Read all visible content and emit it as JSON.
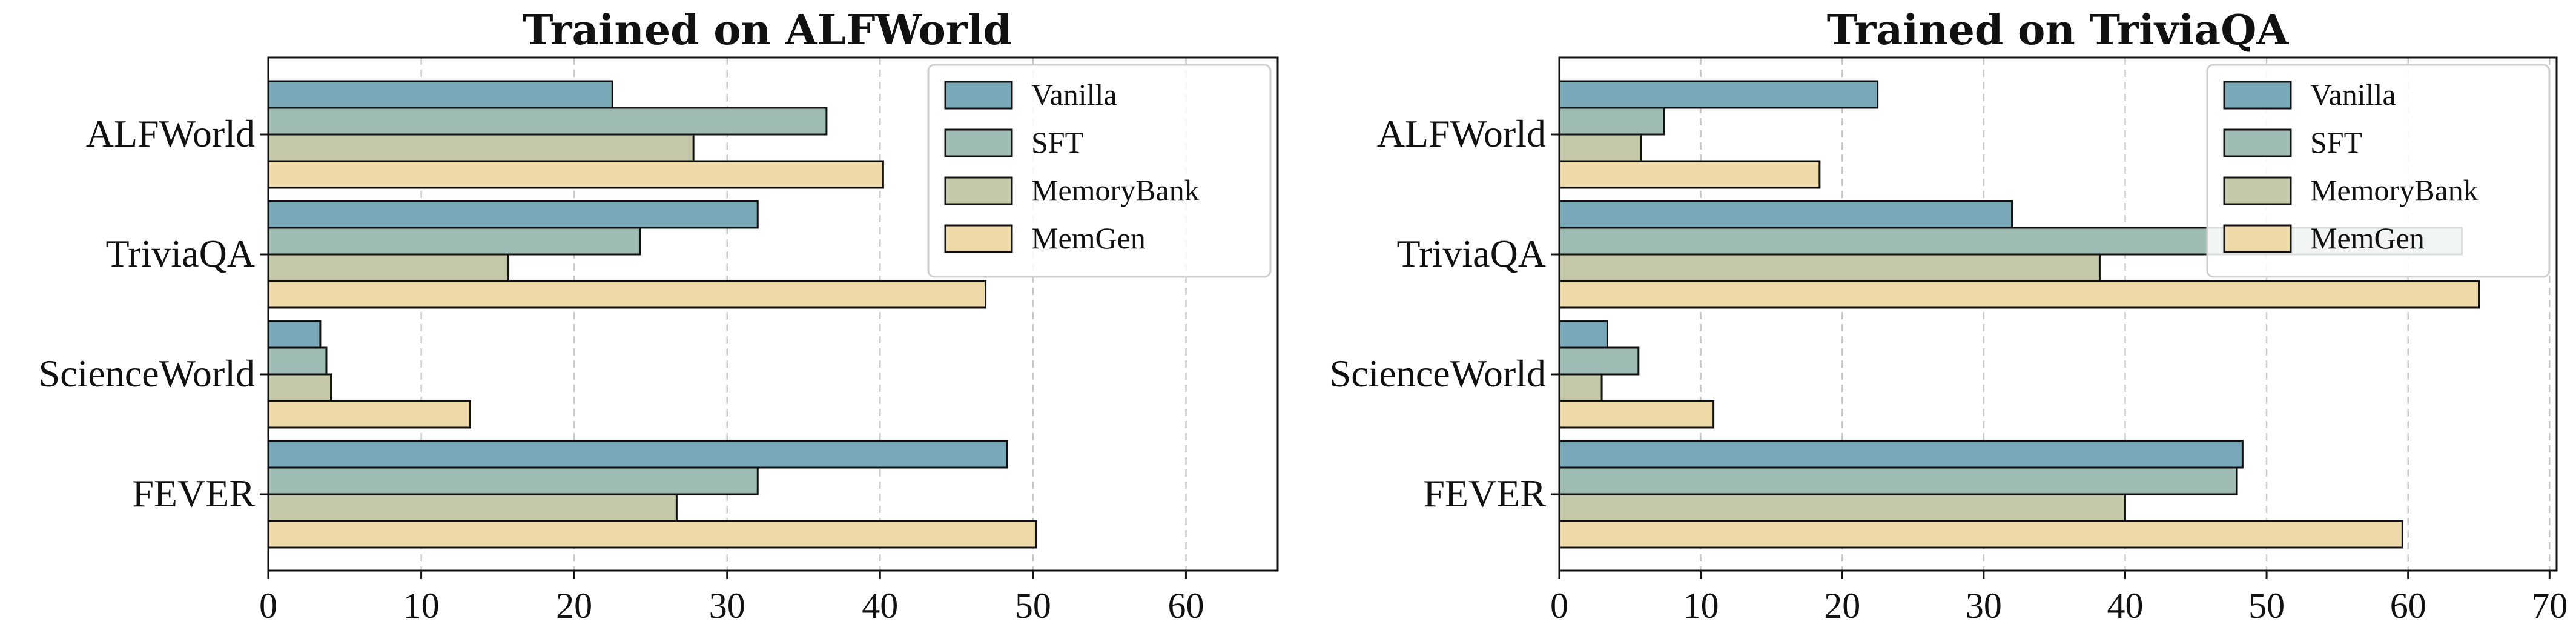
{
  "chart_data": [
    {
      "type": "bar",
      "orientation": "horizontal",
      "title": "Trained on ALFWorld",
      "categories": [
        "ALFWorld",
        "TriviaQA",
        "ScienceWorld",
        "FEVER"
      ],
      "series": [
        {
          "name": "Vanilla",
          "color": "#79a8b9",
          "values": [
            22.5,
            32.0,
            3.4,
            48.3
          ]
        },
        {
          "name": "SFT",
          "color": "#9ebcb4",
          "values": [
            36.5,
            24.3,
            3.8,
            32.0
          ]
        },
        {
          "name": "MemoryBank",
          "color": "#c5c8a8",
          "values": [
            27.8,
            15.7,
            4.1,
            26.7
          ]
        },
        {
          "name": "MemGen",
          "color": "#eed9a8",
          "values": [
            40.2,
            46.9,
            13.2,
            50.2
          ]
        }
      ],
      "xlim": [
        0,
        66
      ],
      "xticks": [
        0,
        10,
        20,
        30,
        40,
        50,
        60
      ],
      "grid": true,
      "legend_position": "top-right"
    },
    {
      "type": "bar",
      "orientation": "horizontal",
      "title": "Trained on TriviaQA",
      "categories": [
        "ALFWorld",
        "TriviaQA",
        "ScienceWorld",
        "FEVER"
      ],
      "series": [
        {
          "name": "Vanilla",
          "color": "#79a8b9",
          "values": [
            22.5,
            32.0,
            3.4,
            48.3
          ]
        },
        {
          "name": "SFT",
          "color": "#9ebcb4",
          "values": [
            7.4,
            63.8,
            5.6,
            47.9
          ]
        },
        {
          "name": "MemoryBank",
          "color": "#c5c8a8",
          "values": [
            5.8,
            38.2,
            3.0,
            40.0
          ]
        },
        {
          "name": "MemGen",
          "color": "#eed9a8",
          "values": [
            18.4,
            65.0,
            10.9,
            59.6
          ]
        }
      ],
      "xlim": [
        0,
        70.5
      ],
      "xticks": [
        0,
        10,
        20,
        30,
        40,
        50,
        60,
        70
      ],
      "grid": true,
      "legend_position": "top-right"
    }
  ]
}
